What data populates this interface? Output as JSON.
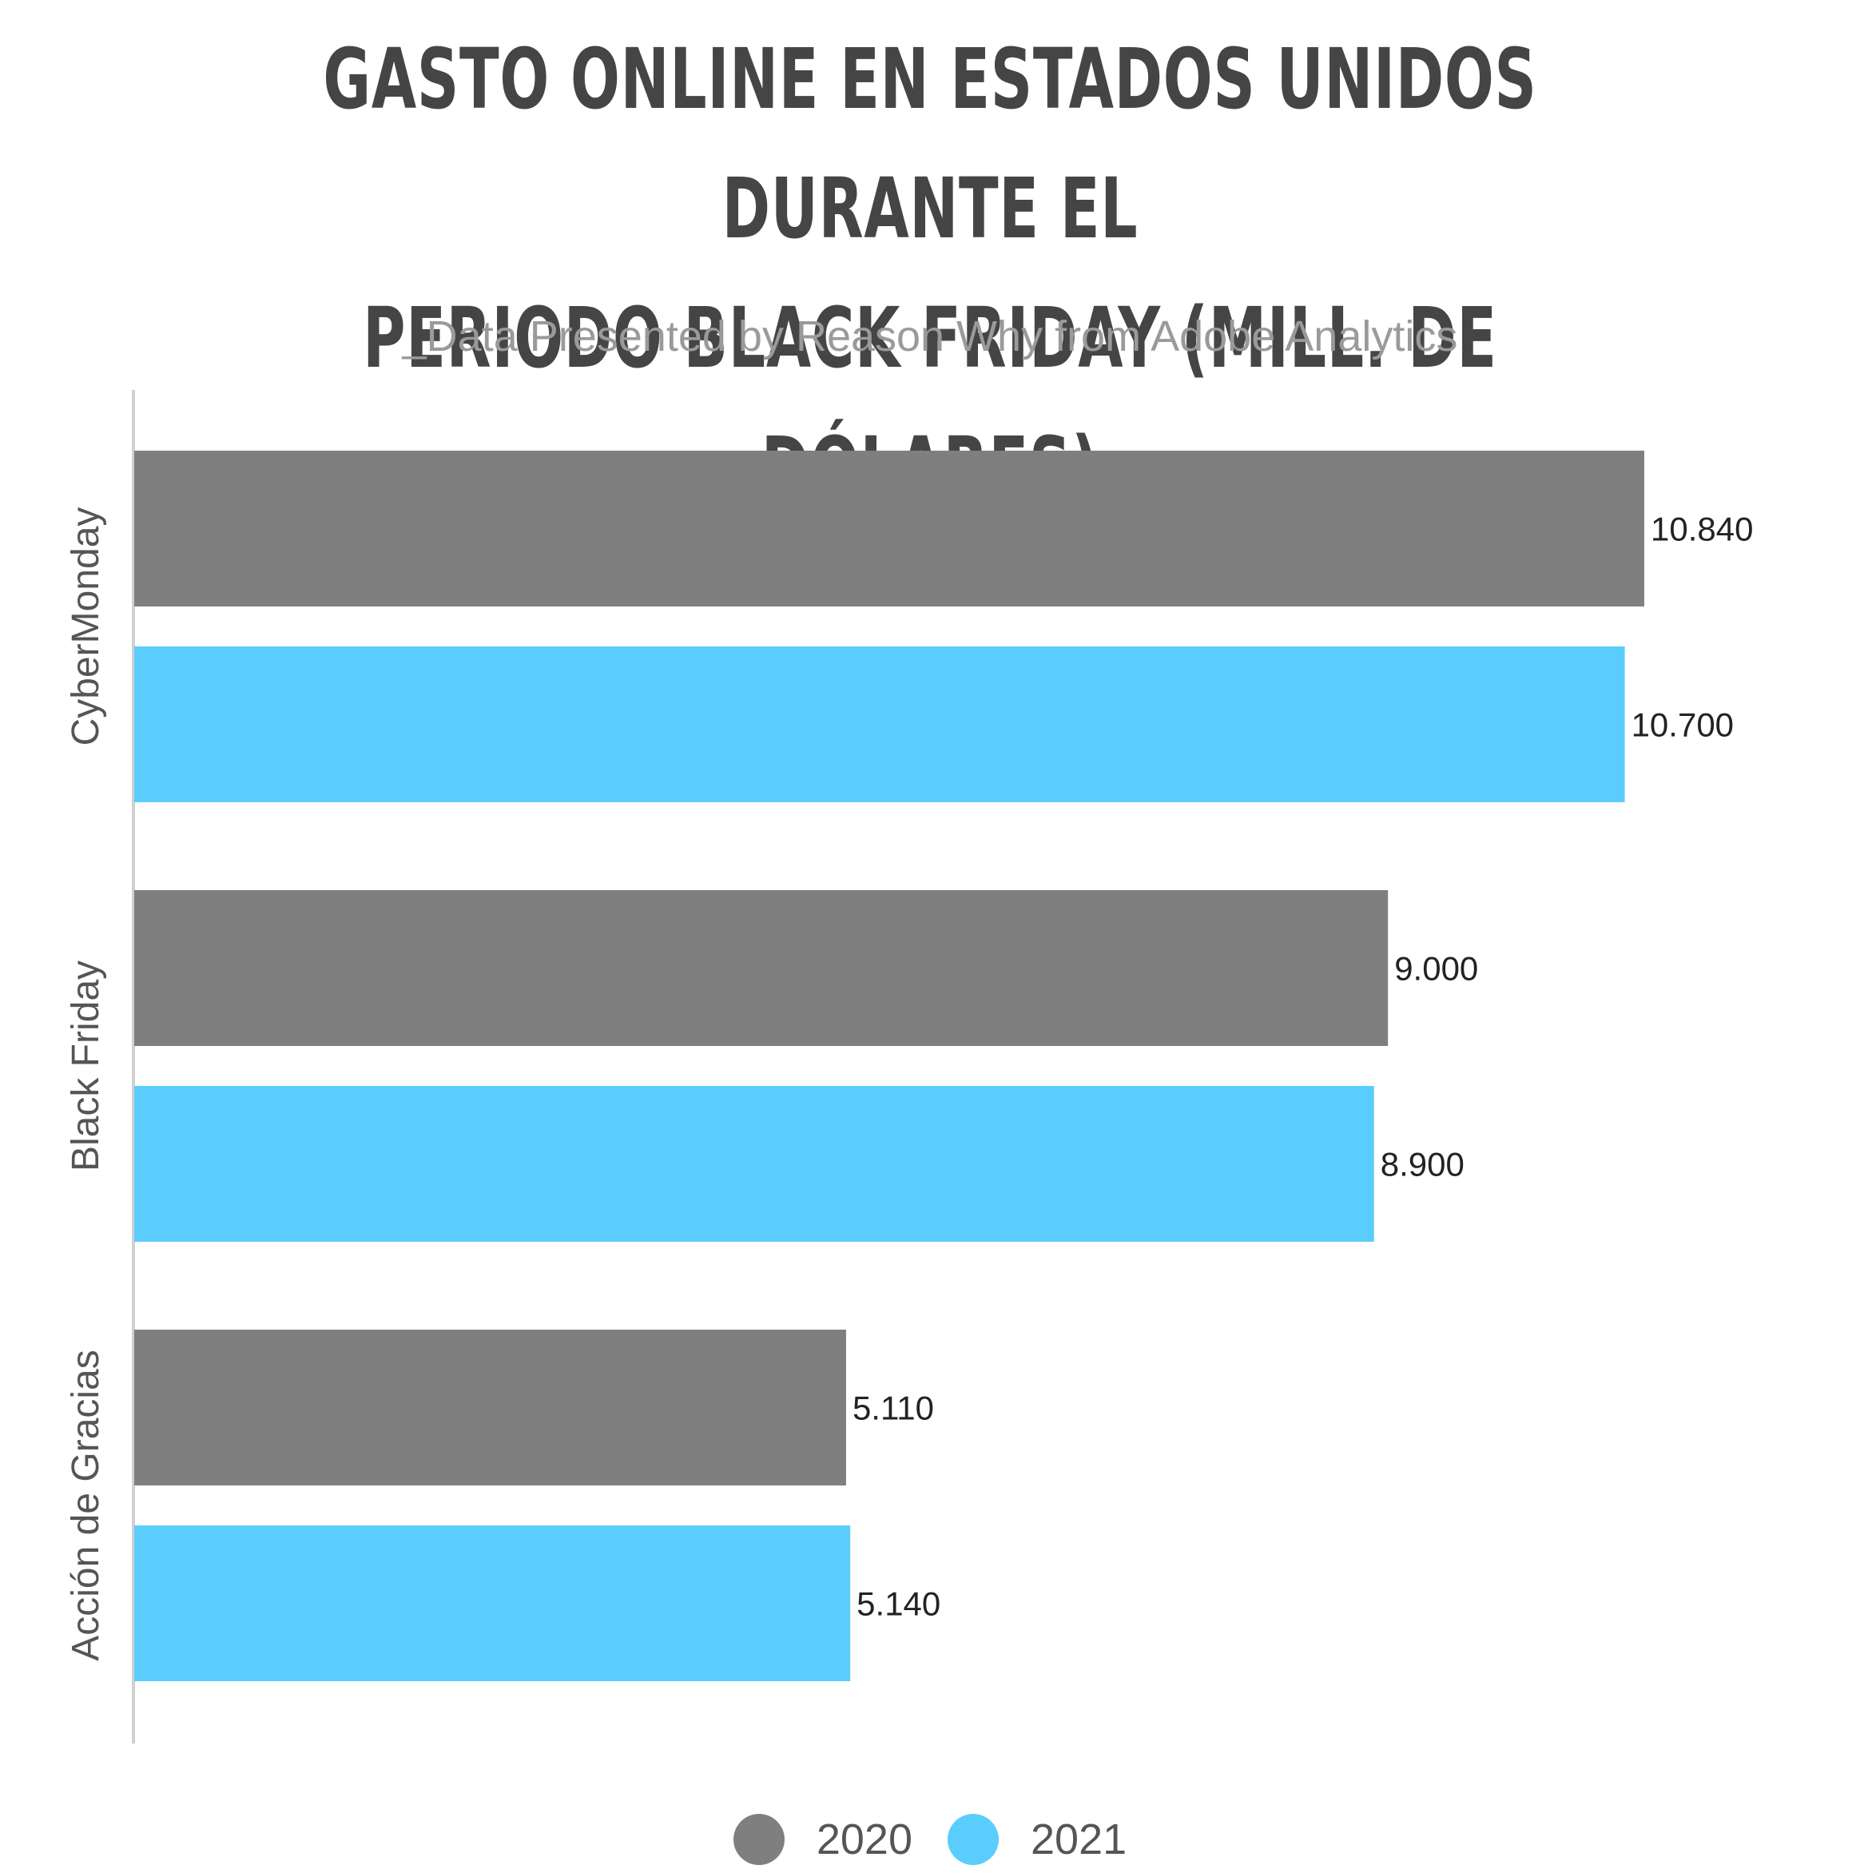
{
  "chart_data": {
    "type": "bar",
    "orientation": "horizontal",
    "title": "GASTO ONLINE EN ESTADOS UNIDOS DURANTE EL\nPERIODO BLACK FRIDAY (MILL. DE DÓLARES)",
    "subtitle": "_Data Presented by Reason Why from Adobe Analytics",
    "categories": [
      "CyberMonday",
      "Black Friday",
      "Acción de Gracias"
    ],
    "series": [
      {
        "name": "2020",
        "color": "#7f7f7f",
        "values": [
          10840,
          9000,
          5110
        ],
        "labels": [
          "10.840",
          "9.000",
          "5.110"
        ]
      },
      {
        "name": "2021",
        "color": "#5bcdfc",
        "values": [
          10700,
          8900,
          5140
        ],
        "labels": [
          "10.700",
          "8.900",
          "5.140"
        ]
      }
    ],
    "xlim": [
      0,
      10840
    ],
    "grid": false,
    "legend_position": "bottom-center"
  }
}
